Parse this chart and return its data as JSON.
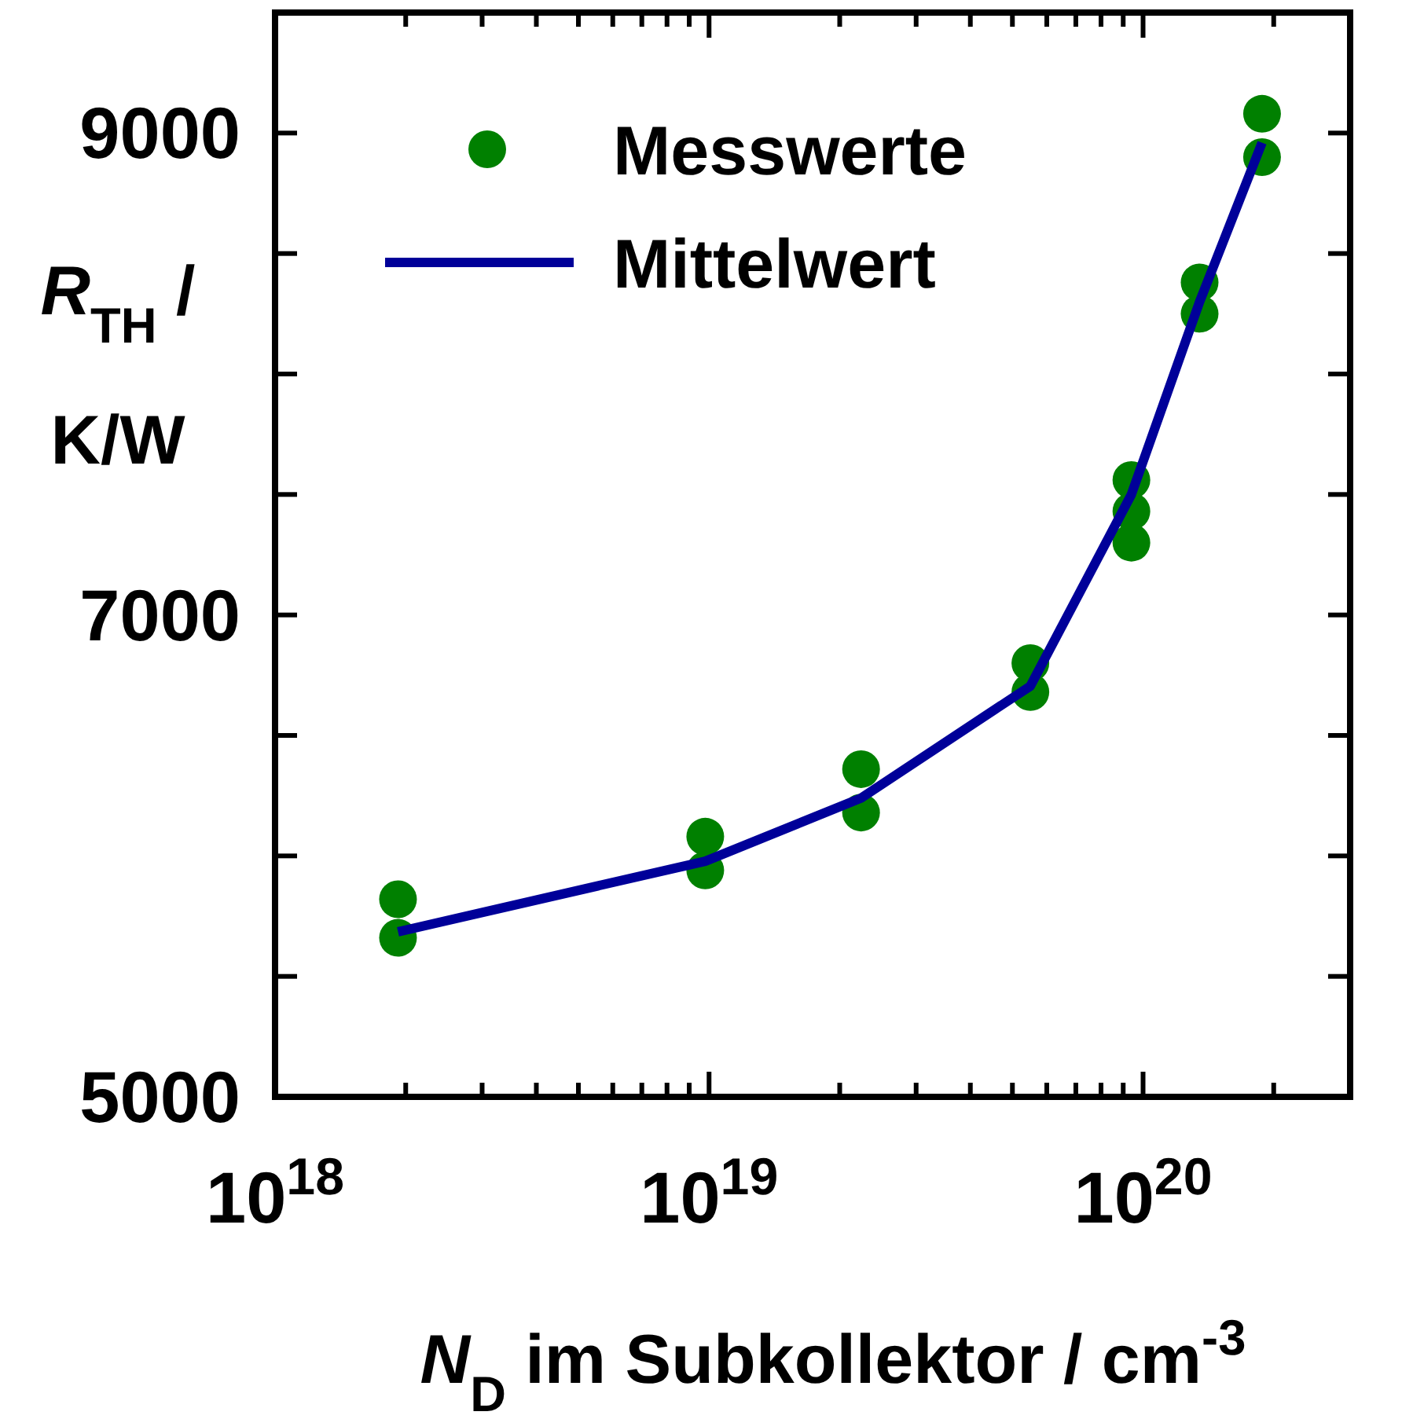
{
  "chart_data": {
    "type": "scatter",
    "xlabel": "N$_{D}$ im Subkollektor / cm$^{-3}$",
    "ylabel": "R$_{TH}$ / K/W",
    "log": "x",
    "xlim": [
      1e+18,
      3e+20
    ],
    "ylim": [
      5000,
      9500
    ],
    "xticks": [
      {
        "value": 1e+18,
        "label": "10$^{18}$"
      },
      {
        "value": 2e+18,
        "label": null
      },
      {
        "value": 3e+18,
        "label": null
      },
      {
        "value": 4e+18,
        "label": null
      },
      {
        "value": 5e+18,
        "label": null
      },
      {
        "value": 6e+18,
        "label": null
      },
      {
        "value": 7e+18,
        "label": null
      },
      {
        "value": 8e+18,
        "label": null
      },
      {
        "value": 9e+18,
        "label": null
      },
      {
        "value": 1e+19,
        "label": "10$^{19}$"
      },
      {
        "value": 2e+19,
        "label": null
      },
      {
        "value": 3e+19,
        "label": null
      },
      {
        "value": 4e+19,
        "label": null
      },
      {
        "value": 5e+19,
        "label": null
      },
      {
        "value": 6e+19,
        "label": null
      },
      {
        "value": 7e+19,
        "label": null
      },
      {
        "value": 8e+19,
        "label": null
      },
      {
        "value": 9e+19,
        "label": null
      },
      {
        "value": 1e+20,
        "label": "10$^{20}$"
      },
      {
        "value": 2e+20,
        "label": null
      }
    ],
    "yticks": [
      5000,
      {
        "value": 5500,
        "label": null
      },
      {
        "value": 6000,
        "label": null
      },
      {
        "value": 6500,
        "label": null
      },
      7000,
      {
        "value": 7500,
        "label": null
      },
      {
        "value": 8000,
        "label": null
      },
      {
        "value": 8500,
        "label": null
      },
      9000
    ],
    "legend": "top left",
    "grid": false,
    "series": [
      {
        "name": "Messwerte",
        "marker": "circle",
        "color": "#008000",
        "x": [
          1.92e+18,
          1.92e+18,
          9.8e+18,
          9.8e+18,
          2.24e+19,
          2.24e+19,
          5.5e+19,
          5.5e+19,
          9.4e+19,
          9.4e+19,
          9.4e+19,
          1.35e+20,
          1.35e+20,
          1.88e+20,
          1.88e+20
        ],
        "values": [
          5820,
          5660,
          6080,
          5940,
          6360,
          6180,
          6800,
          6680,
          7560,
          7430,
          7300,
          8380,
          8250,
          9080,
          8900
        ]
      },
      {
        "name": "Mittelwert",
        "type": "line",
        "line_style": "solid",
        "color": "#000099",
        "x": [
          1.92e+18,
          9.8e+18,
          2.24e+19,
          5.5e+19,
          9.4e+19,
          1.35e+20,
          1.88e+20
        ],
        "values": [
          5685,
          5978,
          6240,
          6705,
          7500,
          8300,
          8960
        ]
      }
    ]
  }
}
